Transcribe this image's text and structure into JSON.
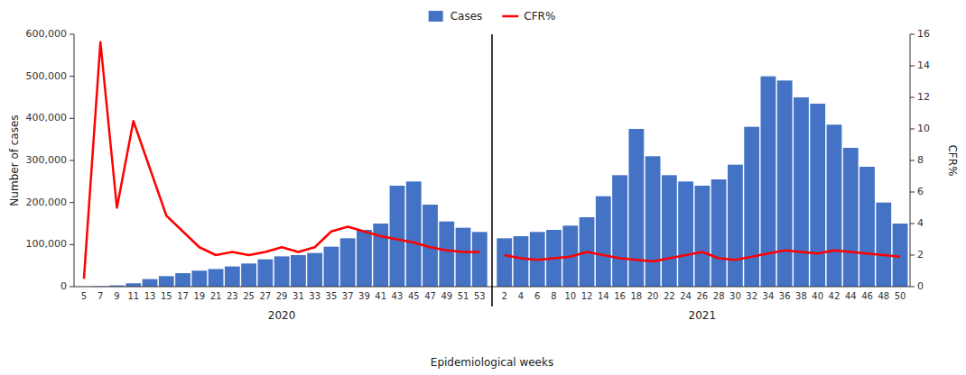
{
  "chart_data": {
    "type": "bar",
    "xlabel": "Epidemiological weeks",
    "ylabel": "Number of cases",
    "y2label": "CFR%",
    "categories": [
      "5",
      "7",
      "9",
      "11",
      "13",
      "15",
      "17",
      "19",
      "21",
      "23",
      "25",
      "27",
      "29",
      "31",
      "33",
      "35",
      "37",
      "39",
      "41",
      "43",
      "45",
      "47",
      "49",
      "51",
      "53",
      "2",
      "4",
      "6",
      "8",
      "10",
      "12",
      "14",
      "16",
      "18",
      "20",
      "22",
      "24",
      "26",
      "28",
      "30",
      "32",
      "34",
      "36",
      "38",
      "40",
      "42",
      "44",
      "46",
      "48",
      "50"
    ],
    "category_groups": [
      "2020",
      "2020",
      "2020",
      "2020",
      "2020",
      "2020",
      "2020",
      "2020",
      "2020",
      "2020",
      "2020",
      "2020",
      "2020",
      "2020",
      "2020",
      "2020",
      "2020",
      "2020",
      "2020",
      "2020",
      "2020",
      "2020",
      "2020",
      "2020",
      "2020",
      "2021",
      "2021",
      "2021",
      "2021",
      "2021",
      "2021",
      "2021",
      "2021",
      "2021",
      "2021",
      "2021",
      "2021",
      "2021",
      "2021",
      "2021",
      "2021",
      "2021",
      "2021",
      "2021",
      "2021",
      "2021",
      "2021",
      "2021",
      "2021",
      "2021"
    ],
    "series": [
      {
        "name": "Cases",
        "type": "bar",
        "color": "#4472C4",
        "values": [
          200,
          1000,
          3000,
          8000,
          18000,
          25000,
          32000,
          38000,
          42000,
          48000,
          55000,
          65000,
          72000,
          75000,
          80000,
          95000,
          115000,
          135000,
          150000,
          240000,
          250000,
          195000,
          155000,
          140000,
          130000,
          115000,
          120000,
          130000,
          135000,
          145000,
          165000,
          215000,
          265000,
          375000,
          310000,
          265000,
          250000,
          240000,
          255000,
          290000,
          380000,
          500000,
          490000,
          450000,
          435000,
          385000,
          330000,
          285000,
          200000,
          150000
        ]
      },
      {
        "name": "CFR%",
        "type": "line",
        "color": "#FF0000",
        "axis": "y2",
        "values": [
          0.5,
          15.5,
          5.0,
          10.5,
          7.5,
          4.5,
          3.5,
          2.5,
          2.0,
          2.2,
          2.0,
          2.2,
          2.5,
          2.2,
          2.5,
          3.5,
          3.8,
          3.5,
          3.2,
          3.0,
          2.8,
          2.5,
          2.3,
          2.2,
          2.2,
          2.0,
          1.8,
          1.7,
          1.8,
          1.9,
          2.2,
          2.0,
          1.8,
          1.7,
          1.6,
          1.8,
          2.0,
          2.2,
          1.8,
          1.7,
          1.9,
          2.1,
          2.3,
          2.2,
          2.1,
          2.3,
          2.2,
          2.1,
          2.0,
          1.9
        ]
      }
    ],
    "ylim": [
      0,
      600000
    ],
    "yticks": [
      0,
      {
        "value": 100000,
        "label": "100,000"
      },
      {
        "value": 200000,
        "label": "200,000"
      },
      {
        "value": 300000,
        "label": "300,000"
      },
      {
        "value": 400000,
        "label": "400,000"
      },
      {
        "value": 500000,
        "label": "500,000"
      },
      {
        "value": 600000,
        "label": "600,000"
      }
    ],
    "y2lim": [
      0,
      16
    ],
    "y2ticks": [
      0,
      2,
      4,
      6,
      8,
      10,
      12,
      14,
      16
    ],
    "grid": false,
    "legend": "top"
  }
}
